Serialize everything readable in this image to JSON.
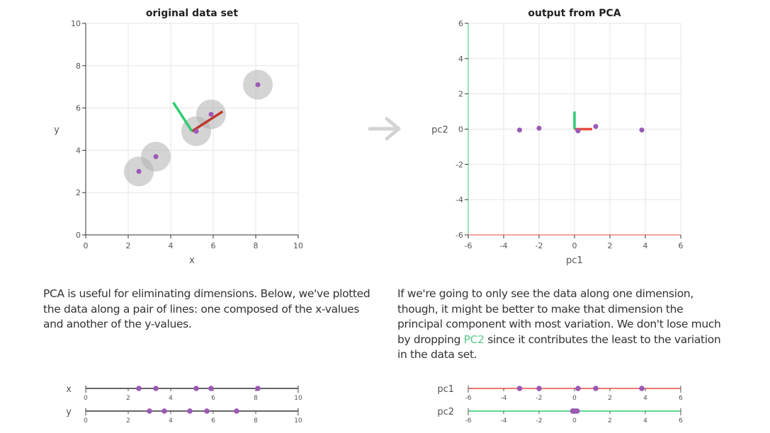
{
  "chart_data": [
    {
      "type": "scatter",
      "title": "original data set",
      "xlabel": "x",
      "ylabel": "y",
      "xlim": [
        0,
        10
      ],
      "ylim": [
        0,
        10
      ],
      "xticks": [
        0,
        2,
        4,
        6,
        8,
        10
      ],
      "yticks": [
        0,
        2,
        4,
        6,
        8,
        10
      ],
      "grid": true,
      "points": [
        {
          "x": 2.5,
          "y": 3.0
        },
        {
          "x": 3.3,
          "y": 3.7
        },
        {
          "x": 5.2,
          "y": 4.9
        },
        {
          "x": 5.9,
          "y": 5.7
        },
        {
          "x": 8.1,
          "y": 7.1
        }
      ],
      "mean": {
        "x": 5.0,
        "y": 4.9
      },
      "pc1_vector": {
        "dx": 0.85,
        "dy": 0.55
      },
      "pc2_vector": {
        "dx": -0.55,
        "dy": 0.85
      },
      "colors": {
        "point": "#9b59b6",
        "halo": "#b0b0b0",
        "pc1": "#c0392b",
        "pc2": "#2ecc71"
      }
    },
    {
      "type": "scatter",
      "title": "output from PCA",
      "xlabel": "pc1",
      "ylabel": "pc2",
      "xlim": [
        -6,
        6
      ],
      "ylim": [
        -6,
        6
      ],
      "xticks": [
        -6,
        -4,
        -2,
        0,
        2,
        4,
        6
      ],
      "yticks": [
        -6,
        -4,
        -2,
        0,
        2,
        4,
        6
      ],
      "grid": true,
      "points": [
        {
          "x": -3.1,
          "y": -0.05
        },
        {
          "x": -2.0,
          "y": 0.05
        },
        {
          "x": 0.2,
          "y": -0.1
        },
        {
          "x": 1.2,
          "y": 0.15
        },
        {
          "x": 3.8,
          "y": -0.05
        }
      ],
      "colors": {
        "point": "#9b59b6",
        "pc1": "#e74c3c",
        "pc2": "#2ecc71",
        "pc1_axis": "#f08a80",
        "pc2_axis": "#7fd9a4"
      }
    },
    {
      "type": "strip",
      "rows": [
        {
          "label": "x",
          "min": 0,
          "max": 10,
          "ticks": [
            0,
            2,
            4,
            6,
            8,
            10
          ],
          "values": [
            2.5,
            3.3,
            5.2,
            5.9,
            8.1
          ]
        },
        {
          "label": "y",
          "min": 0,
          "max": 10,
          "ticks": [
            0,
            2,
            4,
            6,
            8,
            10
          ],
          "values": [
            3.0,
            3.7,
            4.9,
            5.7,
            7.1
          ]
        }
      ]
    },
    {
      "type": "strip",
      "rows": [
        {
          "label": "pc1",
          "min": -6,
          "max": 6,
          "ticks": [
            -6,
            -4,
            -2,
            0,
            2,
            4,
            6
          ],
          "values": [
            -3.1,
            -2.0,
            0.2,
            1.2,
            3.8
          ],
          "color": "#e74c3c"
        },
        {
          "label": "pc2",
          "min": -6,
          "max": 6,
          "ticks": [
            -6,
            -4,
            -2,
            0,
            2,
            4,
            6
          ],
          "values": [
            -0.05,
            0.05,
            -0.1,
            0.15,
            -0.05
          ],
          "color": "#2ecc71"
        }
      ]
    }
  ],
  "left_text": "PCA is useful for eliminating dimensions. Below, we've plotted the data along a pair of lines: one composed of the x-values and another of the y-values.",
  "right_text": {
    "before": "If we're going to only see the data along one dimension, though, it might be better to make that dimension the principal component with most variation. We don't lose much by dropping ",
    "highlight": "PC2",
    "after": " since it contributes the least to the variation in the data set."
  },
  "arrow_icon": "right-arrow-icon"
}
